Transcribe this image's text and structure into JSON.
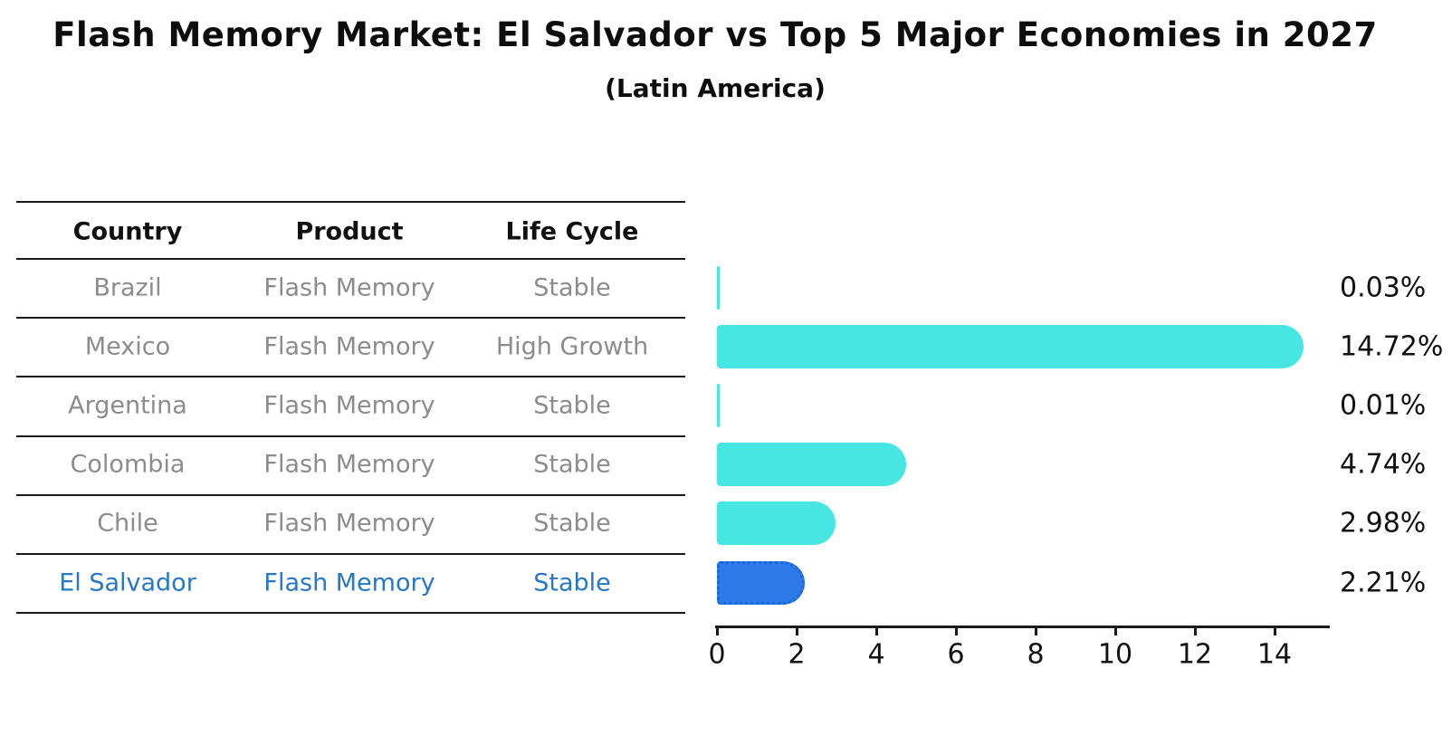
{
  "title": "Flash Memory Market: El Salvador vs Top 5 Major Economies in 2027",
  "subtitle": "(Latin America)",
  "table": {
    "columns": [
      "Country",
      "Product",
      "Life Cycle"
    ],
    "rows": [
      {
        "country": "Brazil",
        "product": "Flash Memory",
        "life_cycle": "Stable",
        "highlighted": false
      },
      {
        "country": "Mexico",
        "product": "Flash Memory",
        "life_cycle": "High Growth",
        "highlighted": false
      },
      {
        "country": "Argentina",
        "product": "Flash Memory",
        "life_cycle": "Stable",
        "highlighted": false
      },
      {
        "country": "Colombia",
        "product": "Flash Memory",
        "life_cycle": "Stable",
        "highlighted": false
      },
      {
        "country": "Chile",
        "product": "Flash Memory",
        "life_cycle": "Stable",
        "highlighted": false
      },
      {
        "country": "El Salvador",
        "product": "Flash Memory",
        "life_cycle": "Stable",
        "highlighted": true
      }
    ]
  },
  "chart_data": {
    "type": "bar",
    "orientation": "horizontal",
    "title": "Flash Memory Market: El Salvador vs Top 5 Major Economies in 2027",
    "subtitle": "(Latin America)",
    "categories": [
      "Brazil",
      "Mexico",
      "Argentina",
      "Colombia",
      "Chile",
      "El Salvador"
    ],
    "values": [
      0.03,
      14.72,
      0.01,
      4.74,
      2.98,
      2.21
    ],
    "value_labels": [
      "0.03%",
      "14.72%",
      "0.01%",
      "4.74%",
      "2.98%",
      "2.21%"
    ],
    "x_ticks": [
      "0",
      "2",
      "4",
      "6",
      "8",
      "10",
      "12",
      "14"
    ],
    "xlim": [
      0,
      15.4
    ],
    "grid": false,
    "legend": false,
    "highlight_category": "El Salvador"
  },
  "colors": {
    "bar": "#48E6E2",
    "highlight_bar": "#2B7AE8",
    "highlight_bar_border": "#1D64DC",
    "highlight_text": "#2578C8",
    "row_text": "#8C8C8C",
    "header_text": "#111111",
    "line": "#1A1A1A"
  }
}
